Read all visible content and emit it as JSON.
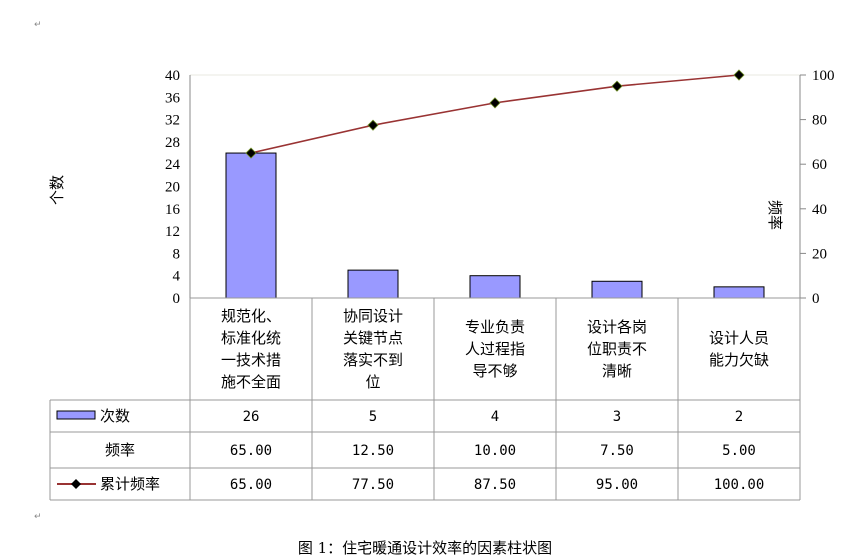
{
  "chart_data": {
    "type": "bar+line",
    "categories": [
      [
        "规范化、",
        "标准化统",
        "一技术措",
        "施不全面"
      ],
      [
        "协同设计",
        "关键节点",
        "落实不到",
        "位"
      ],
      [
        "专业负责",
        "人过程指",
        "导不够"
      ],
      [
        "设计各岗",
        "位职责不",
        "清晰"
      ],
      [
        "设计人员",
        "能力欠缺"
      ]
    ],
    "series": [
      {
        "name": "次数",
        "type": "bar",
        "axis": "left",
        "values": [
          26,
          5,
          4,
          3,
          2
        ],
        "labels": [
          "26",
          "5",
          "4",
          "3",
          "2"
        ],
        "color": "#9999ff"
      },
      {
        "name": "频率",
        "type": "table-only",
        "values": [
          65.0,
          12.5,
          10.0,
          7.5,
          5.0
        ],
        "labels": [
          "65.00",
          "12.50",
          "10.00",
          "7.50",
          "5.00"
        ]
      },
      {
        "name": "累计频率",
        "type": "line",
        "axis": "right",
        "values": [
          65.0,
          77.5,
          87.5,
          95.0,
          100.0
        ],
        "labels": [
          "65.00",
          "77.50",
          "87.50",
          "95.00",
          "100.00"
        ],
        "color": "#993333",
        "marker_color": "#000000"
      }
    ],
    "ylabel": "个数",
    "y2label": "频率",
    "ylim": [
      0,
      40
    ],
    "yticks": [
      "0",
      "4",
      "8",
      "12",
      "16",
      "20",
      "24",
      "28",
      "32",
      "36",
      "40"
    ],
    "y2lim": [
      0,
      100
    ],
    "y2ticks": [
      "0",
      "20",
      "40",
      "60",
      "80",
      "100"
    ],
    "grid": false,
    "legend": "data-table"
  },
  "caption": "图 1：住宅暖通设计效率的因素柱状图"
}
